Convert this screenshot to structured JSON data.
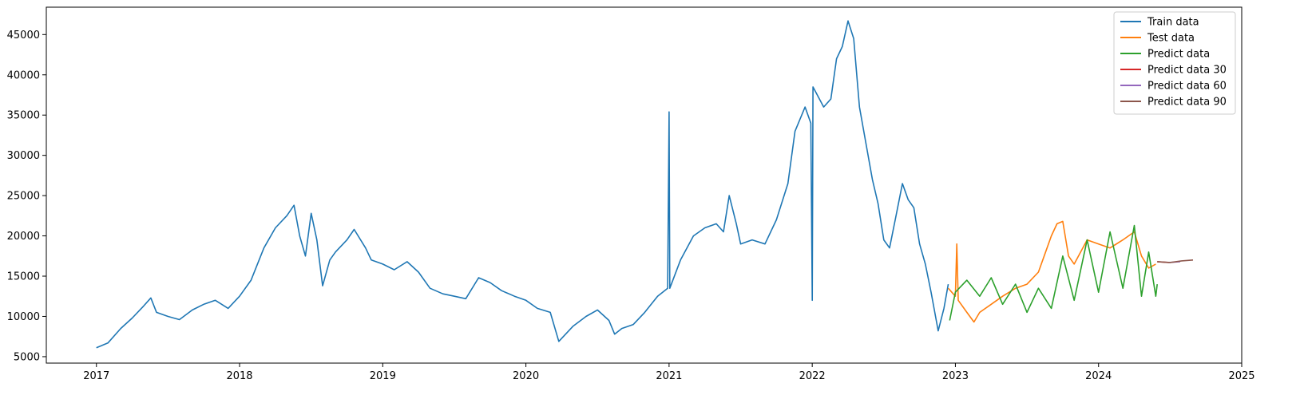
{
  "chart_data": {
    "type": "line",
    "title": "",
    "xlabel": "",
    "ylabel": "",
    "x_unit": "year",
    "xlim": [
      2016.65,
      2025.0
    ],
    "ylim": [
      4200,
      48400
    ],
    "x_ticks": [
      2017,
      2018,
      2019,
      2020,
      2021,
      2022,
      2023,
      2024,
      2025
    ],
    "x_tick_labels": [
      "2017",
      "2018",
      "2019",
      "2020",
      "2021",
      "2022",
      "2023",
      "2024",
      "2025"
    ],
    "y_ticks": [
      5000,
      10000,
      15000,
      20000,
      25000,
      30000,
      35000,
      40000,
      45000
    ],
    "y_tick_labels": [
      "5000",
      "10000",
      "15000",
      "20000",
      "25000",
      "30000",
      "35000",
      "40000",
      "45000"
    ],
    "grid": false,
    "legend_position": "top-right",
    "series": [
      {
        "name": "Train data",
        "color": "#1f77b4",
        "points": [
          [
            2017.0,
            6100
          ],
          [
            2017.08,
            6700
          ],
          [
            2017.17,
            8500
          ],
          [
            2017.25,
            9800
          ],
          [
            2017.33,
            11300
          ],
          [
            2017.38,
            12300
          ],
          [
            2017.42,
            10500
          ],
          [
            2017.5,
            10000
          ],
          [
            2017.58,
            9600
          ],
          [
            2017.67,
            10800
          ],
          [
            2017.75,
            11500
          ],
          [
            2017.83,
            12000
          ],
          [
            2017.92,
            11000
          ],
          [
            2018.0,
            12500
          ],
          [
            2018.08,
            14500
          ],
          [
            2018.17,
            18500
          ],
          [
            2018.25,
            21000
          ],
          [
            2018.33,
            22500
          ],
          [
            2018.38,
            23800
          ],
          [
            2018.42,
            20000
          ],
          [
            2018.46,
            17500
          ],
          [
            2018.5,
            22800
          ],
          [
            2018.54,
            19500
          ],
          [
            2018.58,
            13800
          ],
          [
            2018.63,
            17000
          ],
          [
            2018.67,
            18000
          ],
          [
            2018.75,
            19500
          ],
          [
            2018.8,
            20800
          ],
          [
            2018.88,
            18500
          ],
          [
            2018.92,
            17000
          ],
          [
            2019.0,
            16500
          ],
          [
            2019.08,
            15800
          ],
          [
            2019.17,
            16800
          ],
          [
            2019.25,
            15500
          ],
          [
            2019.33,
            13500
          ],
          [
            2019.42,
            12800
          ],
          [
            2019.5,
            12500
          ],
          [
            2019.58,
            12200
          ],
          [
            2019.67,
            14800
          ],
          [
            2019.75,
            14200
          ],
          [
            2019.83,
            13200
          ],
          [
            2019.92,
            12500
          ],
          [
            2020.0,
            12000
          ],
          [
            2020.08,
            11000
          ],
          [
            2020.17,
            10500
          ],
          [
            2020.23,
            6900
          ],
          [
            2020.33,
            8800
          ],
          [
            2020.42,
            10000
          ],
          [
            2020.5,
            10800
          ],
          [
            2020.58,
            9500
          ],
          [
            2020.62,
            7800
          ],
          [
            2020.67,
            8500
          ],
          [
            2020.75,
            9000
          ],
          [
            2020.83,
            10500
          ],
          [
            2020.92,
            12500
          ],
          [
            2020.99,
            13500
          ],
          [
            2021.0,
            35400
          ],
          [
            2021.005,
            13500
          ],
          [
            2021.08,
            17000
          ],
          [
            2021.17,
            20000
          ],
          [
            2021.25,
            21000
          ],
          [
            2021.33,
            21500
          ],
          [
            2021.38,
            20500
          ],
          [
            2021.42,
            25000
          ],
          [
            2021.47,
            21500
          ],
          [
            2021.5,
            19000
          ],
          [
            2021.58,
            19500
          ],
          [
            2021.67,
            19000
          ],
          [
            2021.75,
            22000
          ],
          [
            2021.83,
            26500
          ],
          [
            2021.88,
            33000
          ],
          [
            2021.95,
            36000
          ],
          [
            2021.99,
            34000
          ],
          [
            2022.0,
            12000
          ],
          [
            2022.005,
            38500
          ],
          [
            2022.08,
            36000
          ],
          [
            2022.13,
            37000
          ],
          [
            2022.17,
            42000
          ],
          [
            2022.21,
            43500
          ],
          [
            2022.25,
            46700
          ],
          [
            2022.29,
            44500
          ],
          [
            2022.33,
            36000
          ],
          [
            2022.38,
            31000
          ],
          [
            2022.42,
            27000
          ],
          [
            2022.46,
            24000
          ],
          [
            2022.5,
            19500
          ],
          [
            2022.54,
            18500
          ],
          [
            2022.58,
            22000
          ],
          [
            2022.63,
            26500
          ],
          [
            2022.67,
            24500
          ],
          [
            2022.71,
            23500
          ],
          [
            2022.75,
            19000
          ],
          [
            2022.79,
            16500
          ],
          [
            2022.83,
            13000
          ],
          [
            2022.88,
            8200
          ],
          [
            2022.92,
            11000
          ],
          [
            2022.95,
            14000
          ]
        ]
      },
      {
        "name": "Test data",
        "color": "#ff7f0e",
        "points": [
          [
            2022.95,
            13500
          ],
          [
            2023.0,
            12500
          ],
          [
            2023.01,
            19000
          ],
          [
            2023.02,
            12000
          ],
          [
            2023.08,
            10500
          ],
          [
            2023.13,
            9300
          ],
          [
            2023.17,
            10500
          ],
          [
            2023.25,
            11500
          ],
          [
            2023.33,
            12500
          ],
          [
            2023.42,
            13500
          ],
          [
            2023.5,
            14000
          ],
          [
            2023.58,
            15500
          ],
          [
            2023.63,
            18000
          ],
          [
            2023.67,
            20000
          ],
          [
            2023.71,
            21500
          ],
          [
            2023.75,
            21800
          ],
          [
            2023.79,
            17500
          ],
          [
            2023.83,
            16500
          ],
          [
            2023.92,
            19500
          ],
          [
            2024.0,
            19000
          ],
          [
            2024.08,
            18500
          ],
          [
            2024.17,
            19500
          ],
          [
            2024.25,
            20500
          ],
          [
            2024.3,
            17500
          ],
          [
            2024.35,
            16000
          ],
          [
            2024.4,
            16500
          ]
        ]
      },
      {
        "name": "Predict data",
        "color": "#2ca02c",
        "points": [
          [
            2022.96,
            9500
          ],
          [
            2023.0,
            13000
          ],
          [
            2023.08,
            14500
          ],
          [
            2023.17,
            12500
          ],
          [
            2023.25,
            14800
          ],
          [
            2023.33,
            11500
          ],
          [
            2023.42,
            14000
          ],
          [
            2023.5,
            10500
          ],
          [
            2023.58,
            13500
          ],
          [
            2023.67,
            11000
          ],
          [
            2023.75,
            17500
          ],
          [
            2023.83,
            12000
          ],
          [
            2023.92,
            19500
          ],
          [
            2024.0,
            13000
          ],
          [
            2024.08,
            20500
          ],
          [
            2024.17,
            13500
          ],
          [
            2024.25,
            21300
          ],
          [
            2024.3,
            12500
          ],
          [
            2024.35,
            18000
          ],
          [
            2024.4,
            12500
          ],
          [
            2024.41,
            14000
          ]
        ]
      },
      {
        "name": "Predict data 30",
        "color": "#d62728",
        "points": [
          [
            2024.41,
            16800
          ],
          [
            2024.49,
            16700
          ]
        ]
      },
      {
        "name": "Predict data 60",
        "color": "#9467bd",
        "points": [
          [
            2024.49,
            16700
          ],
          [
            2024.57,
            16800
          ]
        ]
      },
      {
        "name": "Predict data 90",
        "color": "#8c564b",
        "points": [
          [
            2024.41,
            16800
          ],
          [
            2024.5,
            16700
          ],
          [
            2024.58,
            16900
          ],
          [
            2024.66,
            17000
          ]
        ]
      }
    ]
  }
}
